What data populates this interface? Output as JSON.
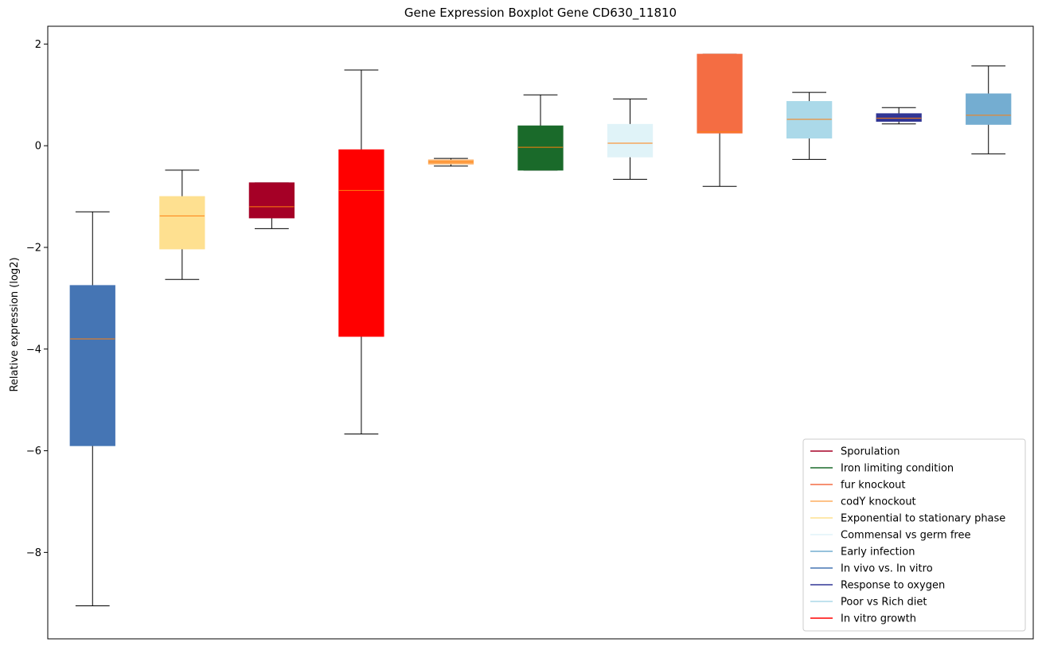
{
  "chart_data": {
    "type": "box",
    "title": "Gene Expression Boxplot Gene CD630_11810",
    "xlabel": "",
    "ylabel": "Relative expression (log2)",
    "ylim": [
      -9.7,
      2.35
    ],
    "yticks": [
      2,
      0,
      -2,
      -4,
      -6,
      -8
    ],
    "ytick_labels": [
      "2",
      "0",
      "−2",
      "−4",
      "−6",
      "−8"
    ],
    "median_color": "#ff7f0e",
    "grid": false,
    "legend_position": "lower-right",
    "boxes": [
      {
        "series": "In vivo vs. In vitro",
        "color": "#4575b4",
        "min": -9.05,
        "q1": -5.9,
        "median": -3.8,
        "q3": -2.75,
        "max": -1.3
      },
      {
        "series": "Exponential to stationary phase",
        "color": "#fee090",
        "min": -2.63,
        "q1": -2.03,
        "median": -1.38,
        "q3": -1.0,
        "max": -0.48
      },
      {
        "series": "Sporulation",
        "color": "#a50026",
        "min": -1.63,
        "q1": -1.42,
        "median": -1.2,
        "q3": -0.73,
        "max": -0.73
      },
      {
        "series": "In vitro growth",
        "color": "#ff0000",
        "min": -5.67,
        "q1": -3.75,
        "median": -0.88,
        "q3": -0.08,
        "max": 1.49
      },
      {
        "series": "codY knockout",
        "color": "#fdae61",
        "min": -0.4,
        "q1": -0.36,
        "median": -0.32,
        "q3": -0.28,
        "max": -0.25
      },
      {
        "series": "Iron limiting condition",
        "color": "#1a6a2a",
        "min": -0.48,
        "q1": -0.48,
        "median": -0.03,
        "q3": 0.39,
        "max": 1.0
      },
      {
        "series": "Commensal vs germ free",
        "color": "#e0f3f8",
        "min": -0.66,
        "q1": -0.22,
        "median": 0.05,
        "q3": 0.42,
        "max": 0.92
      },
      {
        "series": "fur knockout",
        "color": "#f46d43",
        "min": -0.8,
        "q1": 0.25,
        "median": 0.27,
        "q3": 1.8,
        "max": 1.8
      },
      {
        "series": "Poor vs Rich diet",
        "color": "#abd9e9",
        "min": -0.27,
        "q1": 0.15,
        "median": 0.52,
        "q3": 0.87,
        "max": 1.05
      },
      {
        "series": "Response to oxygen",
        "color": "#313695",
        "min": 0.43,
        "q1": 0.48,
        "median": 0.54,
        "q3": 0.63,
        "max": 0.75
      },
      {
        "series": "Early infection",
        "color": "#74add1",
        "min": -0.16,
        "q1": 0.42,
        "median": 0.6,
        "q3": 1.02,
        "max": 1.57
      }
    ],
    "legend": [
      {
        "label": "Sporulation",
        "color": "#a50026"
      },
      {
        "label": "Iron limiting condition",
        "color": "#1a6a2a"
      },
      {
        "label": "fur knockout",
        "color": "#f46d43"
      },
      {
        "label": "codY knockout",
        "color": "#fdae61"
      },
      {
        "label": "Exponential to stationary phase",
        "color": "#fee090"
      },
      {
        "label": "Commensal vs germ free",
        "color": "#e0f3f8"
      },
      {
        "label": "Early infection",
        "color": "#74add1"
      },
      {
        "label": "In vivo vs. In vitro",
        "color": "#4575b4"
      },
      {
        "label": "Response to oxygen",
        "color": "#313695"
      },
      {
        "label": "Poor vs Rich diet",
        "color": "#abd9e9"
      },
      {
        "label": "In vitro growth",
        "color": "#ff0000"
      }
    ]
  }
}
